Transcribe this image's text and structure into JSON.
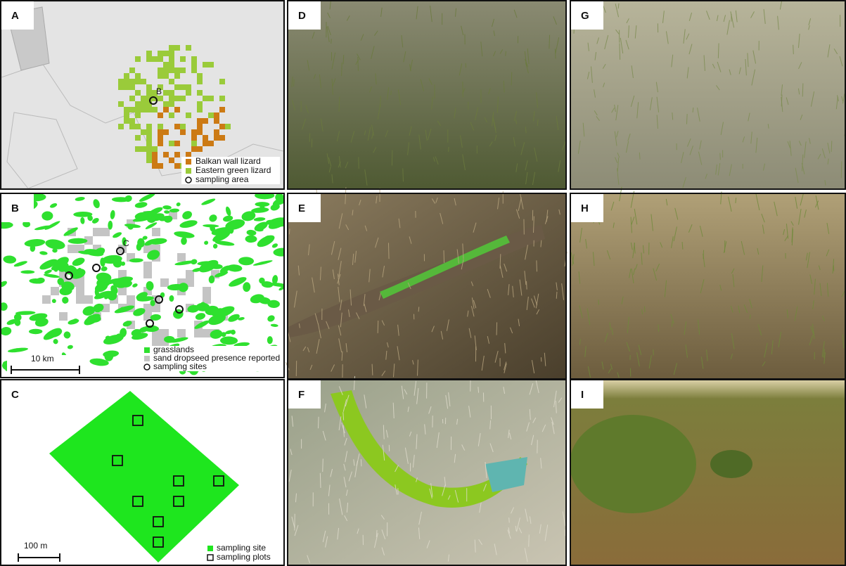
{
  "panels": [
    {
      "label": "A",
      "legend": [
        "Balkan wall lizard",
        "Eastern green lizard",
        "sampling area"
      ],
      "map_label": "B"
    },
    {
      "label": "B",
      "legend": [
        "grasslands",
        "sand dropseed presence reported",
        "sampling sites"
      ],
      "map_label": "C",
      "scale": "10 km"
    },
    {
      "label": "C",
      "legend": [
        "sampling site",
        "sampling plots"
      ],
      "scale": "100 m"
    },
    {
      "label": "D"
    },
    {
      "label": "E"
    },
    {
      "label": "F"
    },
    {
      "label": "G"
    },
    {
      "label": "H"
    },
    {
      "label": "I"
    }
  ]
}
